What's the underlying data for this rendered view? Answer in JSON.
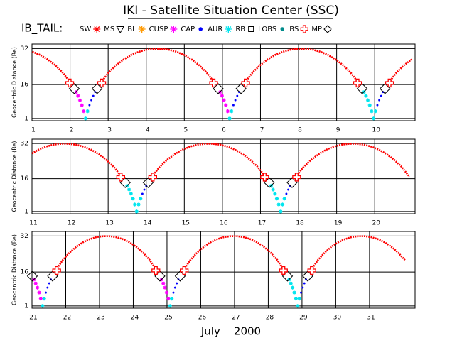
{
  "title": "IKI - Satellite Situation Center (SSC)",
  "legend_title": "IB_TAIL:",
  "legend": [
    {
      "name": "SW",
      "color": "#ff0000",
      "marker": "star"
    },
    {
      "name": "MS",
      "color": "#000000",
      "marker": "triangle"
    },
    {
      "name": "BL",
      "color": "#ff9900",
      "marker": "star"
    },
    {
      "name": "CUSP",
      "color": "#ff00ff",
      "marker": "star"
    },
    {
      "name": "CAP",
      "color": "#0000ff",
      "marker": "dot"
    },
    {
      "name": "AUR",
      "color": "#00e5ee",
      "marker": "star"
    },
    {
      "name": "RB",
      "color": "#000000",
      "marker": "square"
    },
    {
      "name": "LOBS",
      "color": "#008b8b",
      "marker": "dot"
    },
    {
      "name": "BS",
      "color": "#ff0000",
      "marker": "plus"
    },
    {
      "name": "MP",
      "color": "#000000",
      "marker": "diamond"
    }
  ],
  "x_label": "July    2000",
  "chart_data": [
    {
      "type": "scatter",
      "y_label": "Geocentric Distance (Re)",
      "xlim": [
        1,
        11.06
      ],
      "ylim": [
        0,
        34
      ],
      "xticks": [
        1,
        2,
        3,
        4,
        5,
        6,
        7,
        8,
        9,
        10
      ],
      "yticks": [
        1,
        16,
        32
      ],
      "grid": true,
      "series": [
        {
          "name": "SW",
          "color": "#ff0000",
          "line": true,
          "x": [
            1.01,
            1.21,
            1.41,
            1.61,
            1.81,
            2.01,
            2.41,
            2.81,
            3.01,
            3.21,
            3.41,
            3.61,
            3.81,
            4.01,
            4.21,
            4.39,
            4.59,
            4.79,
            4.99,
            5.19,
            5.39,
            5.59,
            5.79,
            6.19,
            6.59,
            6.79,
            6.99,
            7.19,
            7.39,
            7.59,
            7.79,
            7.99,
            8.17,
            8.37,
            8.57,
            8.77,
            8.97,
            9.17,
            9.37,
            9.57,
            9.97,
            10.37,
            10.57,
            10.77,
            10.97
          ],
          "values": [
            30.6,
            29.2,
            27.2,
            24.6,
            21.3,
            16.9,
            null,
            16.9,
            21.3,
            24.6,
            27.2,
            29.2,
            30.6,
            31.5,
            31.9,
            31.9,
            31.5,
            30.6,
            29.2,
            27.2,
            24.6,
            21.3,
            16.9,
            null,
            16.9,
            21.3,
            24.6,
            27.2,
            29.2,
            30.6,
            31.5,
            31.9,
            31.9,
            31.5,
            30.6,
            29.2,
            27.2,
            24.6,
            21.3,
            16.9,
            null,
            16.9,
            21.3,
            24.6,
            27.2
          ]
        },
        {
          "name": "CUSP",
          "color": "#ff00ff",
          "x": [
            2.16,
            2.21,
            2.26,
            2.31,
            2.36,
            5.94,
            5.99,
            6.04,
            6.09,
            6.14
          ],
          "values": [
            12.7,
            11.0,
            9.1,
            6.9,
            4.2,
            12.7,
            11.0,
            9.1,
            6.9,
            4.2
          ]
        },
        {
          "name": "AUR",
          "color": "#00e5ee",
          "x": [
            2.41,
            2.46,
            6.19,
            6.24,
            9.72,
            9.77,
            9.82,
            9.87,
            9.92,
            9.97,
            10.02
          ],
          "values": [
            1,
            4.2,
            1,
            4.2,
            12.7,
            11.0,
            9.1,
            6.9,
            4.2,
            1,
            4.2
          ]
        },
        {
          "name": "CAP",
          "color": "#0000ff",
          "x": [
            2.51,
            2.56,
            2.61,
            2.66,
            6.29,
            6.34,
            6.39,
            6.44,
            10.07,
            10.12,
            10.17,
            10.22
          ],
          "values": [
            6.9,
            9.1,
            11.0,
            12.7,
            6.9,
            9.1,
            11.0,
            12.7,
            6.9,
            9.1,
            11.0,
            12.7
          ]
        },
        {
          "name": "MP",
          "color": "#000000",
          "x": [
            2.11,
            2.71,
            5.89,
            6.49,
            9.67,
            10.27
          ],
          "values": [
            14.2,
            14.2,
            14.2,
            14.2,
            14.2,
            14.2
          ]
        },
        {
          "name": "BS",
          "color": "#ff0000",
          "x": [
            1.99,
            2.83,
            5.77,
            6.61,
            9.55,
            10.39
          ],
          "values": [
            16.7,
            16.7,
            16.7,
            16.7,
            16.7,
            16.7
          ]
        }
      ]
    },
    {
      "type": "scatter",
      "y_label": "Geocentric Distance (Re)",
      "xlim": [
        11,
        21.06
      ],
      "ylim": [
        0,
        34
      ],
      "xticks": [
        11,
        12,
        13,
        14,
        15,
        16,
        17,
        18,
        19,
        20
      ],
      "yticks": [
        1,
        16,
        32
      ],
      "grid": true,
      "series": [
        {
          "name": "SW",
          "color": "#ff0000",
          "line": true,
          "x": [
            11.0,
            11.17,
            11.37,
            11.57,
            11.77,
            11.95,
            12.15,
            12.35,
            12.55,
            12.75,
            12.95,
            13.15,
            13.35,
            13.75,
            14.15,
            14.35,
            14.55,
            14.75,
            14.95,
            15.15,
            15.35,
            15.55,
            15.73,
            15.93,
            16.13,
            16.33,
            16.53,
            16.73,
            16.93,
            17.13,
            17.53,
            17.93,
            18.13,
            18.33,
            18.53,
            18.73,
            18.93,
            19.13,
            19.33,
            19.51,
            19.71,
            19.91,
            20.11,
            20.31,
            20.51,
            20.71,
            20.91
          ],
          "values": [
            27.5,
            29.2,
            30.6,
            31.5,
            31.9,
            31.9,
            31.5,
            30.6,
            29.2,
            27.2,
            24.6,
            21.3,
            16.9,
            null,
            16.9,
            21.3,
            24.6,
            27.2,
            29.2,
            30.6,
            31.5,
            31.9,
            31.9,
            31.5,
            30.6,
            29.2,
            27.2,
            24.6,
            21.3,
            16.9,
            null,
            16.9,
            21.3,
            24.6,
            27.2,
            29.2,
            30.6,
            31.5,
            31.9,
            31.9,
            31.5,
            30.6,
            29.2,
            27.2,
            24.6,
            21.3,
            16.9
          ]
        },
        {
          "name": "AUR",
          "color": "#00e5ee",
          "x": [
            13.5,
            13.55,
            13.6,
            13.65,
            13.7,
            13.75,
            13.8,
            13.85,
            17.28,
            17.33,
            17.38,
            17.43,
            17.48,
            17.53,
            17.58,
            17.63
          ],
          "values": [
            12.7,
            11.0,
            9.1,
            6.9,
            4.2,
            1,
            4.2,
            6.9,
            12.7,
            11.0,
            9.1,
            6.9,
            4.2,
            1,
            4.2,
            6.9
          ]
        },
        {
          "name": "CAP",
          "color": "#0000ff",
          "x": [
            13.9,
            13.95,
            14.0,
            17.68,
            17.73,
            17.78
          ],
          "values": [
            9.1,
            11.0,
            12.7,
            9.1,
            11.0,
            12.7
          ]
        },
        {
          "name": "MP",
          "color": "#000000",
          "x": [
            13.45,
            14.05,
            17.23,
            17.83
          ],
          "values": [
            14.2,
            14.2,
            14.2,
            14.2
          ]
        },
        {
          "name": "BS",
          "color": "#ff0000",
          "x": [
            13.33,
            14.17,
            17.11,
            17.95
          ],
          "values": [
            16.7,
            16.7,
            16.7,
            16.7
          ]
        }
      ]
    },
    {
      "type": "scatter",
      "y_label": "Geocentric Distance (Re)",
      "xlim": [
        21,
        32.35
      ],
      "ylim": [
        0,
        34
      ],
      "xticks": [
        21,
        22,
        23,
        24,
        25,
        26,
        27,
        28,
        29,
        30,
        31
      ],
      "yticks": [
        1,
        16,
        32
      ],
      "grid": true,
      "series": [
        {
          "name": "SW",
          "color": "#ff0000",
          "line": true,
          "x": [
            21.71,
            21.91,
            22.11,
            22.31,
            22.51,
            22.71,
            22.91,
            23.11,
            23.29,
            23.49,
            23.69,
            23.89,
            24.09,
            24.29,
            24.49,
            24.69,
            25.09,
            25.49,
            25.69,
            25.89,
            26.09,
            26.29,
            26.49,
            26.69,
            26.89,
            27.07,
            27.27,
            27.47,
            27.67,
            27.87,
            28.07,
            28.27,
            28.47,
            28.87,
            29.27,
            29.47,
            29.67,
            29.87,
            30.07,
            30.27,
            30.47,
            30.67,
            30.85,
            31.05,
            31.25,
            31.45,
            31.65,
            31.85,
            32.05
          ],
          "values": [
            16.9,
            21.3,
            24.6,
            27.2,
            29.2,
            30.6,
            31.5,
            31.9,
            31.9,
            31.5,
            30.6,
            29.2,
            27.2,
            24.6,
            21.3,
            16.9,
            null,
            16.9,
            21.3,
            24.6,
            27.2,
            29.2,
            30.6,
            31.5,
            31.9,
            31.9,
            31.5,
            30.6,
            29.2,
            27.2,
            24.6,
            21.3,
            16.9,
            null,
            16.9,
            21.3,
            24.6,
            27.2,
            29.2,
            30.6,
            31.5,
            31.9,
            31.9,
            31.5,
            30.6,
            29.2,
            27.2,
            24.6,
            21.3
          ]
        },
        {
          "name": "CUSP",
          "color": "#ff00ff",
          "x": [
            21.06,
            21.11,
            21.16,
            21.21,
            21.26,
            24.84,
            24.89,
            24.94,
            24.99,
            25.04
          ],
          "values": [
            12.7,
            11.0,
            9.1,
            6.9,
            4.2,
            12.7,
            11.0,
            9.1,
            6.9,
            4.2
          ]
        },
        {
          "name": "AUR",
          "color": "#00e5ee",
          "x": [
            21.31,
            21.36,
            25.09,
            25.14,
            28.62,
            28.67,
            28.72,
            28.77,
            28.82,
            28.87,
            28.92
          ],
          "values": [
            1,
            4.2,
            1,
            4.2,
            12.7,
            11.0,
            9.1,
            6.9,
            4.2,
            1,
            4.2
          ]
        },
        {
          "name": "CAP",
          "color": "#0000ff",
          "x": [
            21.41,
            21.46,
            21.51,
            21.56,
            25.19,
            25.24,
            25.29,
            25.34,
            28.97,
            29.02,
            29.07,
            29.12
          ],
          "values": [
            6.9,
            9.1,
            11.0,
            12.7,
            6.9,
            9.1,
            11.0,
            12.7,
            6.9,
            9.1,
            11.0,
            12.7
          ]
        },
        {
          "name": "MP",
          "color": "#000000",
          "x": [
            21.01,
            21.61,
            24.79,
            25.39,
            28.57,
            29.17
          ],
          "values": [
            14.2,
            14.2,
            14.2,
            14.2,
            14.2,
            14.2
          ]
        },
        {
          "name": "BS",
          "color": "#ff0000",
          "x": [
            21.73,
            24.67,
            25.51,
            28.45,
            29.29
          ],
          "values": [
            16.7,
            16.7,
            16.7,
            16.7,
            16.7
          ]
        }
      ]
    }
  ]
}
